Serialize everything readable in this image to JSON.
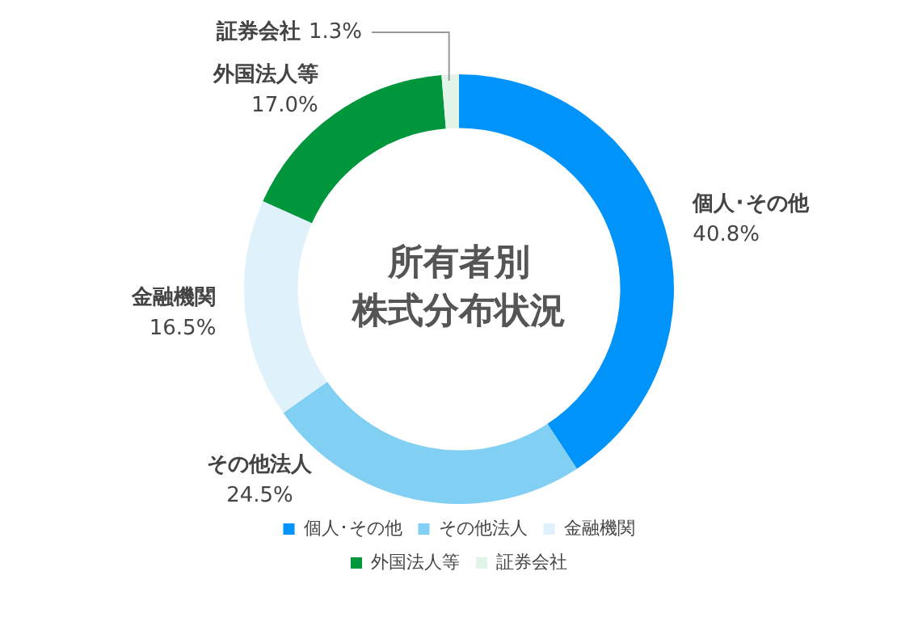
{
  "chart_data": {
    "type": "donut",
    "title": "所有者別株式分布状況",
    "categories": [
      "個人･その他",
      "その他法人",
      "金融機関",
      "外国法人等",
      "証券会社"
    ],
    "values": [
      40.8,
      24.5,
      16.5,
      17.0,
      1.3
    ],
    "value_labels": [
      "40.8%",
      "24.5%",
      "16.5%",
      "17.0%",
      "1.3%"
    ],
    "colors": [
      "#0094fa",
      "#82cff4",
      "#dff2fb",
      "#00963c",
      "#e2f3e8"
    ],
    "legend": "bottom"
  }
}
